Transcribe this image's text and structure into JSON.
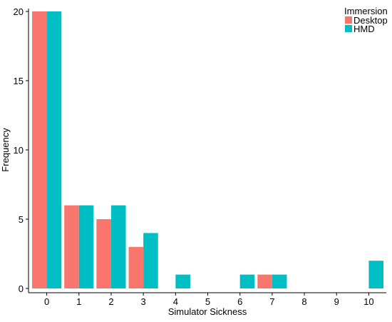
{
  "chart_data": {
    "type": "bar",
    "title": "",
    "xlabel": "Simulator Sickness",
    "ylabel": "Frequency",
    "categories": [
      "0",
      "1",
      "2",
      "3",
      "4",
      "5",
      "6",
      "7",
      "8",
      "9",
      "10"
    ],
    "series": [
      {
        "name": "Desktop",
        "color": "#F8766D",
        "values": [
          20,
          6,
          5,
          3,
          0,
          0,
          0,
          1,
          0,
          0,
          0
        ]
      },
      {
        "name": "HMD",
        "color": "#00BFC4",
        "values": [
          20,
          6,
          6,
          4,
          1,
          0,
          1,
          1,
          0,
          0,
          2
        ]
      }
    ],
    "ylim": [
      0,
      20
    ],
    "yticks": [
      0,
      5,
      10,
      15,
      20
    ],
    "grid": false,
    "legend": {
      "title": "Immersion",
      "placement": "top-right"
    }
  }
}
